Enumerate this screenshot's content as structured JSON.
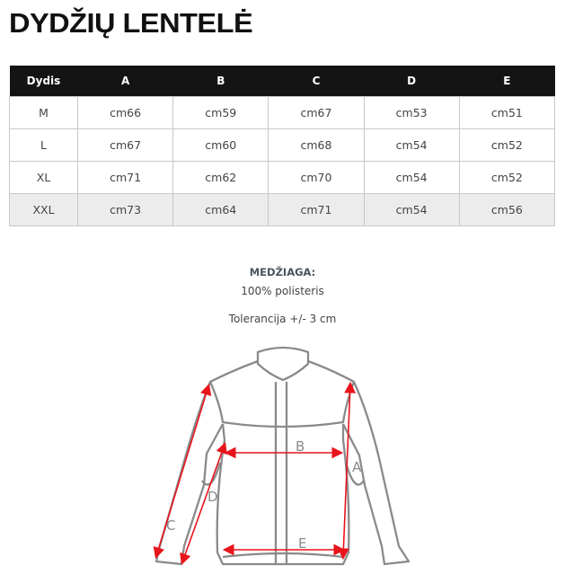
{
  "title": "DYDŽIŲ LENTELĖ",
  "table": {
    "headers": [
      "Dydis",
      "A",
      "B",
      "C",
      "D",
      "E"
    ],
    "rows": [
      [
        "M",
        "cm66",
        "cm59",
        "cm67",
        "cm53",
        "cm51"
      ],
      [
        "L",
        "cm67",
        "cm60",
        "cm68",
        "cm54",
        "cm52"
      ],
      [
        "XL",
        "cm71",
        "cm62",
        "cm70",
        "cm54",
        "cm52"
      ],
      [
        "XXL",
        "cm73",
        "cm64",
        "cm71",
        "cm54",
        "cm56"
      ]
    ]
  },
  "material_label": "MEDŽIAGA:",
  "material_value": "100% polisteris",
  "tolerance": "Tolerancija +/- 3 cm",
  "diagram": {
    "labels": {
      "a": "A",
      "b": "B",
      "c": "C",
      "d": "D",
      "e": "E"
    },
    "arrow_color": "#e8141b",
    "outline_color": "#8a8a8a"
  }
}
